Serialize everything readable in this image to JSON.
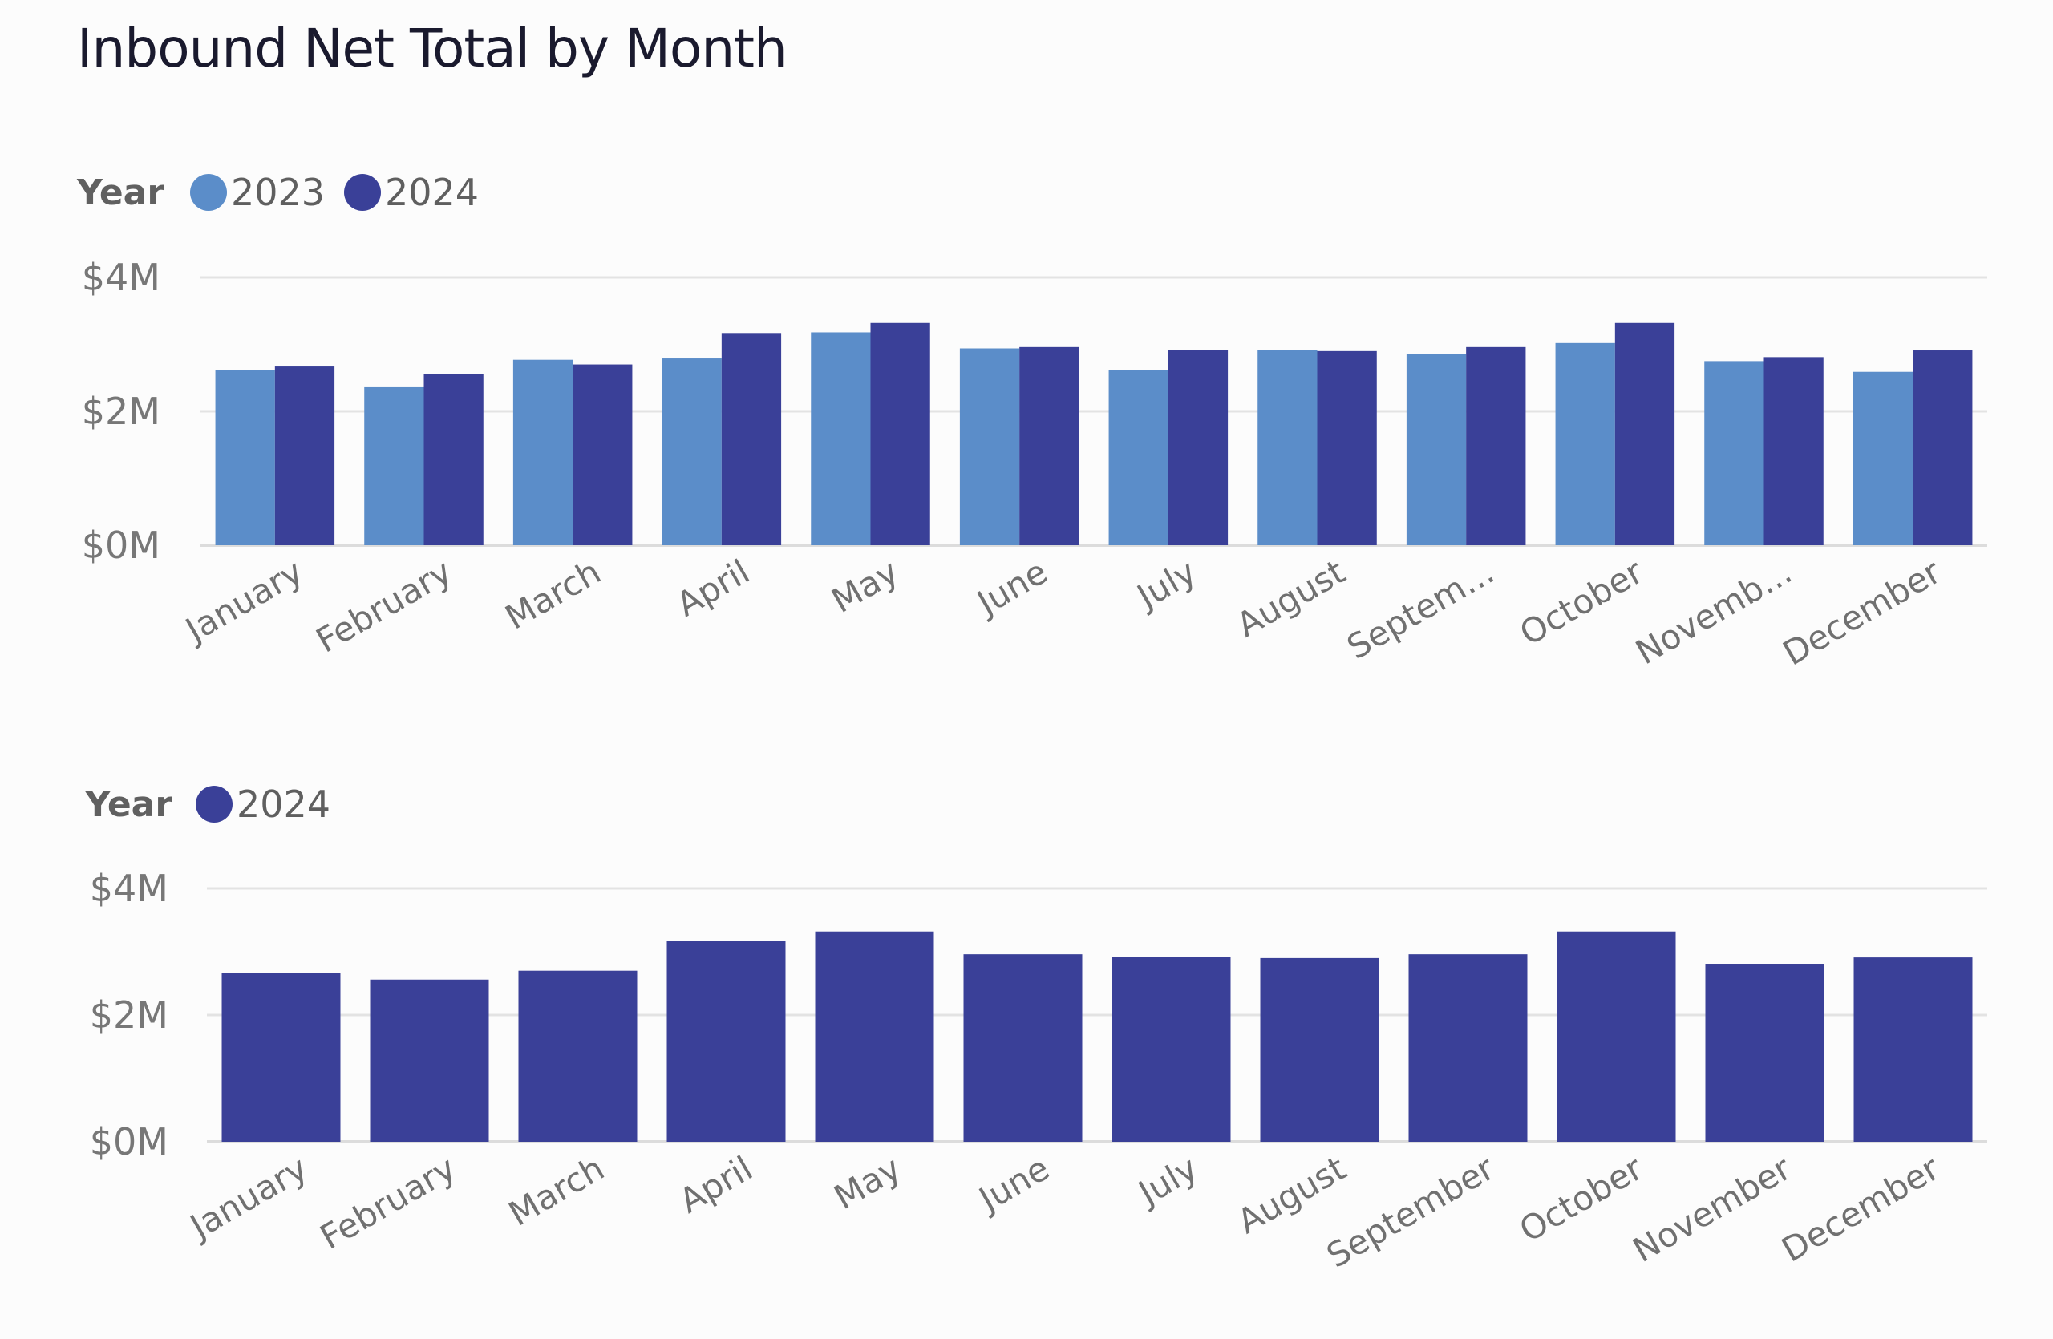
{
  "title": "Inbound Net Total by Month",
  "colors": {
    "2023": "#5b8dc9",
    "2024": "#3a4098"
  },
  "chart_data": [
    {
      "type": "bar",
      "legend_title": "Year",
      "legend_position": "top-left",
      "grid": true,
      "categories": [
        "January",
        "February",
        "March",
        "April",
        "May",
        "June",
        "July",
        "August",
        "Septem...",
        "October",
        "Novemb...",
        "December"
      ],
      "series": [
        {
          "name": "2023",
          "values": [
            2.62,
            2.36,
            2.77,
            2.79,
            3.18,
            2.94,
            2.62,
            2.92,
            2.86,
            3.02,
            2.75,
            2.59
          ]
        },
        {
          "name": "2024",
          "values": [
            2.67,
            2.56,
            2.7,
            3.17,
            3.32,
            2.96,
            2.92,
            2.9,
            2.96,
            3.32,
            2.81,
            2.91
          ]
        }
      ],
      "ylim": [
        0,
        4
      ],
      "yticks": [
        0,
        2,
        4
      ],
      "ytick_labels": [
        "$0M",
        "$2M",
        "$4M"
      ]
    },
    {
      "type": "bar",
      "legend_title": "Year",
      "legend_position": "top-left",
      "grid": true,
      "categories": [
        "January",
        "February",
        "March",
        "April",
        "May",
        "June",
        "July",
        "August",
        "September",
        "October",
        "November",
        "December"
      ],
      "series": [
        {
          "name": "2024",
          "values": [
            2.67,
            2.56,
            2.7,
            3.17,
            3.32,
            2.96,
            2.92,
            2.9,
            2.96,
            3.32,
            2.81,
            2.91
          ]
        }
      ],
      "ylim": [
        0,
        4
      ],
      "yticks": [
        0,
        2,
        4
      ],
      "ytick_labels": [
        "$0M",
        "$2M",
        "$4M"
      ]
    }
  ]
}
